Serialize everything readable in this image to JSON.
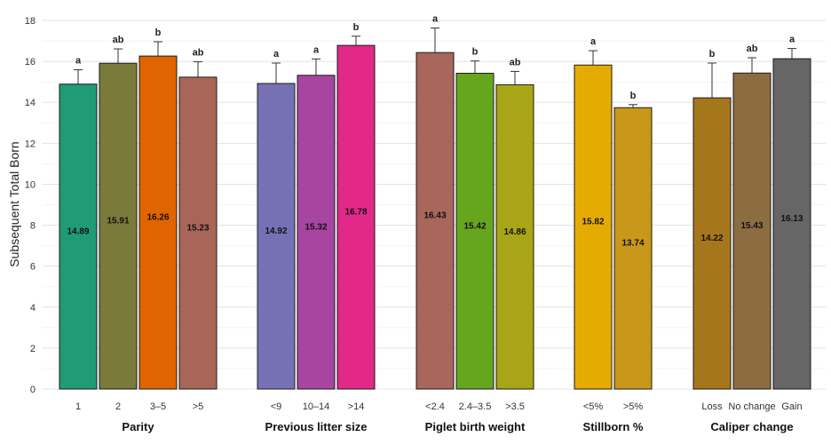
{
  "chart_data": {
    "type": "bar",
    "ylabel": "Subsequent Total Born",
    "ylim": [
      0,
      18
    ],
    "yticks": [
      0,
      2,
      4,
      6,
      8,
      10,
      12,
      14,
      16,
      18
    ],
    "grid": true,
    "groups": [
      {
        "name": "Parity",
        "bars": [
          {
            "category": "1",
            "value": 14.89,
            "label": "14.89",
            "error": 0.7,
            "letter": "a",
            "color": "#1f9b76"
          },
          {
            "category": "2",
            "value": 15.91,
            "label": "15.91",
            "error": 0.7,
            "letter": "ab",
            "color": "#7a7a3a"
          },
          {
            "category": "3–5",
            "value": 16.26,
            "label": "16.26",
            "error": 0.7,
            "letter": "b",
            "color": "#e06400"
          },
          {
            "category": ">5",
            "value": 15.23,
            "label": "15.23",
            "error": 0.75,
            "letter": "ab",
            "color": "#a86658"
          }
        ]
      },
      {
        "name": "Previous litter size",
        "bars": [
          {
            "category": "<9",
            "value": 14.92,
            "label": "14.92",
            "error": 1.0,
            "letter": "a",
            "color": "#7671b4"
          },
          {
            "category": "10–14",
            "value": 15.32,
            "label": "15.32",
            "error": 0.8,
            "letter": "a",
            "color": "#a845a0"
          },
          {
            "category": ">14",
            "value": 16.78,
            "label": "16.78",
            "error": 0.45,
            "letter": "b",
            "color": "#e2298a"
          }
        ]
      },
      {
        "name": "Piglet birth weight",
        "bars": [
          {
            "category": "<2.4",
            "value": 16.43,
            "label": "16.43",
            "error": 1.2,
            "letter": "a",
            "color": "#a8675a"
          },
          {
            "category": "2.4–3.5",
            "value": 15.42,
            "label": "15.42",
            "error": 0.6,
            "letter": "b",
            "color": "#66a61e"
          },
          {
            "category": ">3.5",
            "value": 14.86,
            "label": "14.86",
            "error": 0.65,
            "letter": "ab",
            "color": "#a8a616"
          }
        ]
      },
      {
        "name": "Stillborn %",
        "bars": [
          {
            "category": "<5%",
            "value": 15.82,
            "label": "15.82",
            "error": 0.7,
            "letter": "a",
            "color": "#e6ab02"
          },
          {
            "category": ">5%",
            "value": 13.74,
            "label": "13.74",
            "error": 0.15,
            "letter": "b",
            "color": "#c9971a"
          }
        ]
      },
      {
        "name": "Caliper change",
        "bars": [
          {
            "category": "Loss",
            "value": 14.22,
            "label": "14.22",
            "error": 1.7,
            "letter": "b",
            "color": "#a6761d"
          },
          {
            "category": "No change",
            "value": 15.43,
            "label": "15.43",
            "error": 0.75,
            "letter": "ab",
            "color": "#8c6d42"
          },
          {
            "category": "Gain",
            "value": 16.13,
            "label": "16.13",
            "error": 0.5,
            "letter": "a",
            "color": "#666666"
          }
        ]
      }
    ]
  }
}
